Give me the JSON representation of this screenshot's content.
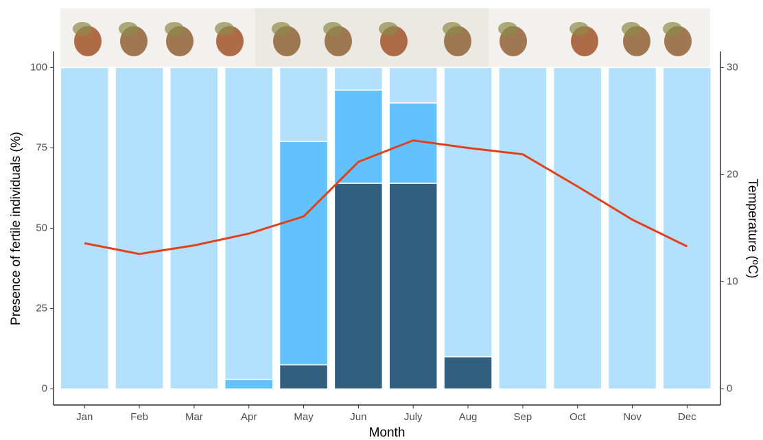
{
  "chart_data": {
    "type": "bar",
    "stacked": true,
    "x_label": "Month",
    "y_label": "Presence of fertile individuals (%)",
    "y2_label": "Temperature (ºC)",
    "categories": [
      "Jan",
      "Feb",
      "Mar",
      "Apr",
      "May",
      "Jun",
      "July",
      "Aug",
      "Sep",
      "Oct",
      "Nov",
      "Dec"
    ],
    "series": [
      {
        "color": "#335f7f",
        "values": [
          0,
          0,
          0,
          0,
          7.5,
          64,
          64,
          10,
          0,
          0,
          0,
          0
        ]
      },
      {
        "color": "#63c1fb",
        "values": [
          0,
          0,
          0,
          3,
          69.5,
          29,
          25,
          0,
          0,
          0,
          0,
          0
        ]
      },
      {
        "color": "#b3e0fc",
        "values": [
          100,
          100,
          100,
          97,
          23,
          7,
          11,
          90,
          100,
          100,
          100,
          100
        ]
      },
      {
        "type": "line",
        "axis": "y2",
        "color": "#e2401c",
        "values": [
          13.6,
          12.6,
          13.4,
          14.5,
          16.1,
          21.2,
          23.2,
          22.5,
          21.9,
          18.9,
          15.8,
          13.3
        ]
      }
    ],
    "ylim": [
      -5,
      105
    ],
    "yticks": [
      0,
      25,
      50,
      75,
      100
    ],
    "y2lim": [
      -1.5,
      31.5
    ],
    "y2ticks": [
      0,
      10,
      20,
      30
    ],
    "grid": false
  }
}
